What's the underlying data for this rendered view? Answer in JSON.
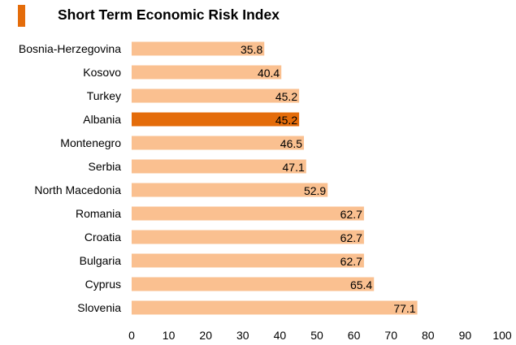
{
  "title": "Short Term Economic Risk Index",
  "colors": {
    "bar": "#fac090",
    "highlight": "#e46c0a",
    "accent": "#e46c0a",
    "text": "#000000"
  },
  "chart_data": {
    "type": "bar",
    "orientation": "horizontal",
    "title": "Short Term Economic Risk Index",
    "xlabel": "",
    "ylabel": "",
    "xlim": [
      0,
      100
    ],
    "x_ticks": [
      "0",
      "10",
      "20",
      "30",
      "40",
      "50",
      "60",
      "70",
      "80",
      "90",
      "100"
    ],
    "grid": false,
    "legend": "none",
    "highlight_category": "Albania",
    "categories": [
      "Bosnia-Herzegovina",
      "Kosovo",
      "Turkey",
      "Albania",
      "Montenegro",
      "Serbia",
      "North Macedonia",
      "Romania",
      "Croatia",
      "Bulgaria",
      "Cyprus",
      "Slovenia"
    ],
    "values": [
      35.8,
      40.4,
      45.2,
      45.2,
      46.5,
      47.1,
      52.9,
      62.7,
      62.7,
      62.7,
      65.4,
      77.1
    ],
    "value_labels": [
      "35.8",
      "40.4",
      "45.2",
      "45.2",
      "46.5",
      "47.1",
      "52.9",
      "62.7",
      "62.7",
      "62.7",
      "65.4",
      "77.1"
    ]
  }
}
